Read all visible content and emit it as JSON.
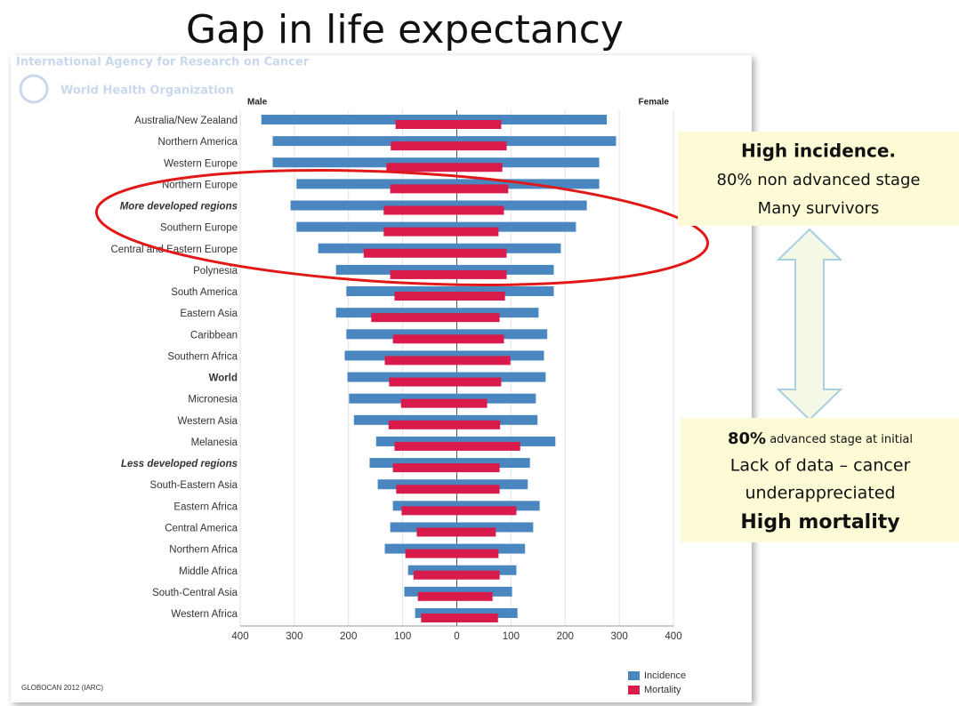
{
  "title": "Gap in life expectancy",
  "source_header": "International Agency for Research on Cancer",
  "who_label": "World Health Organization",
  "chart_data": {
    "type": "butterfly",
    "left_label": "Male",
    "right_label": "Female",
    "categories": [
      "Australia/New Zealand",
      "Northern America",
      "Western Europe",
      "Northern Europe",
      "More developed regions",
      "Southern Europe",
      "Central and Eastern Europe",
      "Polynesia",
      "South America",
      "Eastern Asia",
      "Caribbean",
      "Southern Africa",
      "World",
      "Micronesia",
      "Western Asia",
      "Melanesia",
      "Less developed regions",
      "South-Eastern Asia",
      "Eastern Africa",
      "Central America",
      "Northern Africa",
      "Middle Africa",
      "South-Central Asia",
      "Western Africa"
    ],
    "series": [
      {
        "name": "Incidence",
        "color": "#4a86c0",
        "male": [
          -361,
          -340,
          -340,
          -296,
          -307,
          -296,
          -256,
          -223,
          -204,
          -223,
          -204,
          -207,
          -202,
          -199,
          -190,
          -149,
          -161,
          -146,
          -118,
          -123,
          -133,
          -90,
          -97,
          -77
        ],
        "female": [
          277,
          294,
          263,
          263,
          240,
          220,
          192,
          179,
          179,
          151,
          167,
          161,
          164,
          146,
          149,
          182,
          135,
          131,
          153,
          141,
          126,
          110,
          102,
          112
        ]
      },
      {
        "name": "Mortality",
        "color": "#d81b4a",
        "male": [
          -113,
          -122,
          -130,
          -123,
          -135,
          -135,
          -172,
          -123,
          -115,
          -158,
          -118,
          -133,
          -125,
          -103,
          -126,
          -115,
          -118,
          -112,
          -102,
          -74,
          -95,
          -80,
          -72,
          -66
        ],
        "female": [
          82,
          92,
          84,
          95,
          87,
          77,
          92,
          92,
          89,
          79,
          87,
          99,
          82,
          56,
          80,
          117,
          79,
          79,
          110,
          72,
          77,
          79,
          66,
          76
        ]
      }
    ],
    "xlim": [
      -400,
      400
    ],
    "xticks": [
      {
        "value": -400,
        "label": "400"
      },
      {
        "value": -300,
        "label": "300"
      },
      {
        "value": -200,
        "label": "200"
      },
      {
        "value": -100,
        "label": "100"
      },
      0,
      100,
      200,
      300,
      400
    ],
    "grid": true,
    "footnote": "GLOBOCAN 2012 (IARC)"
  },
  "box_top": {
    "lines": [
      "High incidence.",
      "80% non advanced stage",
      "Many survivors"
    ]
  },
  "box_bottom": {
    "lead": "80%",
    "first_line_rest": " advanced  stage at initial",
    "lines": [
      "Lack of data – cancer",
      "underappreciated",
      "High mortality"
    ]
  }
}
